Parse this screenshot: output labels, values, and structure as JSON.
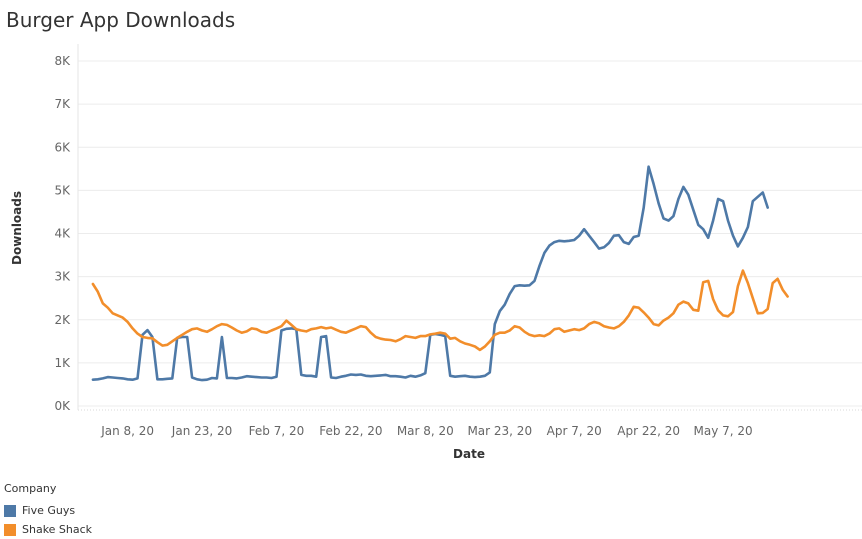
{
  "chart_data": {
    "type": "line",
    "title": "Burger App Downloads",
    "xlabel": "Date",
    "ylabel": "Downloads",
    "ylim": [
      0,
      8000
    ],
    "yticks": [
      0,
      1000,
      2000,
      3000,
      4000,
      5000,
      6000,
      7000,
      8000
    ],
    "ytick_labels": [
      "0K",
      "1K",
      "2K",
      "3K",
      "4K",
      "5K",
      "6K",
      "7K",
      "8K"
    ],
    "xlim": [
      "2019-12-29",
      "2020-06-04"
    ],
    "xticks": [
      "2020-01-08",
      "2020-01-23",
      "2020-02-07",
      "2020-02-22",
      "2020-03-08",
      "2020-03-23",
      "2020-04-07",
      "2020-04-22",
      "2020-05-07"
    ],
    "xtick_labels": [
      "Jan 8, 20",
      "Jan 23, 20",
      "Feb 7, 20",
      "Feb 22, 20",
      "Mar 8, 20",
      "Mar 23, 20",
      "Apr 7, 20",
      "Apr 22, 20",
      "May 7, 20"
    ],
    "grid": true,
    "legend_title": "Company",
    "legend_position": "bottom-left",
    "x_start": "2020-01-01",
    "series": [
      {
        "name": "Five Guys",
        "color": "#4e79a7",
        "values": [
          610,
          620,
          640,
          670,
          660,
          650,
          640,
          620,
          610,
          640,
          1650,
          1760,
          1600,
          620,
          620,
          630,
          640,
          1580,
          1600,
          1600,
          660,
          620,
          600,
          610,
          650,
          640,
          1600,
          650,
          650,
          640,
          660,
          690,
          680,
          670,
          660,
          660,
          650,
          680,
          1750,
          1790,
          1800,
          1780,
          720,
          700,
          700,
          680,
          1600,
          1620,
          660,
          650,
          680,
          700,
          730,
          720,
          730,
          700,
          690,
          700,
          710,
          720,
          690,
          690,
          680,
          660,
          700,
          680,
          710,
          760,
          1650,
          1670,
          1650,
          1620,
          700,
          680,
          690,
          700,
          680,
          670,
          680,
          700,
          780,
          1900,
          2200,
          2350,
          2600,
          2780,
          2800,
          2790,
          2800,
          2900,
          3250,
          3550,
          3720,
          3800,
          3830,
          3820,
          3830,
          3850,
          3950,
          4100,
          3950,
          3800,
          3650,
          3680,
          3780,
          3950,
          3960,
          3800,
          3760,
          3920,
          3950,
          4600,
          5550,
          5150,
          4700,
          4350,
          4300,
          4400,
          4800,
          5080,
          4900,
          4550,
          4200,
          4100,
          3900,
          4300,
          4800,
          4750,
          4300,
          3950,
          3700,
          3900,
          4150,
          4750,
          4850,
          4950,
          4600
        ]
      },
      {
        "name": "Shake Shack",
        "color": "#f28e2b",
        "values": [
          2830,
          2650,
          2380,
          2280,
          2150,
          2100,
          2050,
          1950,
          1800,
          1680,
          1600,
          1580,
          1570,
          1480,
          1400,
          1420,
          1500,
          1580,
          1650,
          1720,
          1780,
          1800,
          1750,
          1720,
          1780,
          1850,
          1900,
          1880,
          1820,
          1750,
          1700,
          1730,
          1800,
          1780,
          1720,
          1700,
          1750,
          1800,
          1850,
          1980,
          1880,
          1780,
          1750,
          1730,
          1780,
          1800,
          1830,
          1800,
          1820,
          1770,
          1720,
          1700,
          1750,
          1800,
          1850,
          1830,
          1700,
          1600,
          1560,
          1540,
          1530,
          1500,
          1550,
          1620,
          1600,
          1580,
          1620,
          1620,
          1660,
          1680,
          1700,
          1680,
          1560,
          1580,
          1500,
          1450,
          1420,
          1380,
          1300,
          1380,
          1500,
          1650,
          1700,
          1700,
          1750,
          1850,
          1820,
          1720,
          1650,
          1620,
          1640,
          1620,
          1680,
          1780,
          1800,
          1720,
          1750,
          1780,
          1760,
          1800,
          1900,
          1950,
          1920,
          1850,
          1820,
          1800,
          1850,
          1950,
          2100,
          2300,
          2280,
          2170,
          2050,
          1900,
          1870,
          1980,
          2050,
          2150,
          2350,
          2420,
          2380,
          2230,
          2210,
          2870,
          2900,
          2480,
          2220,
          2100,
          2080,
          2180,
          2780,
          3140,
          2850,
          2500,
          2150,
          2160,
          2250,
          2850,
          2950,
          2700,
          2540
        ]
      }
    ]
  }
}
